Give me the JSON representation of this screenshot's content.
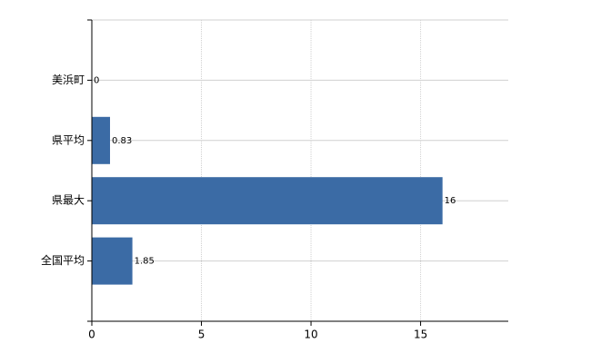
{
  "chart_data": {
    "type": "bar",
    "orientation": "horizontal",
    "categories": [
      "美浜町",
      "県平均",
      "県最大",
      "全国平均"
    ],
    "values": [
      0,
      0.83,
      16,
      1.85
    ],
    "color": "#3b6ba5",
    "xlim": [
      0,
      19
    ],
    "xticks": [
      0,
      5,
      10,
      15
    ],
    "grid": true
  }
}
